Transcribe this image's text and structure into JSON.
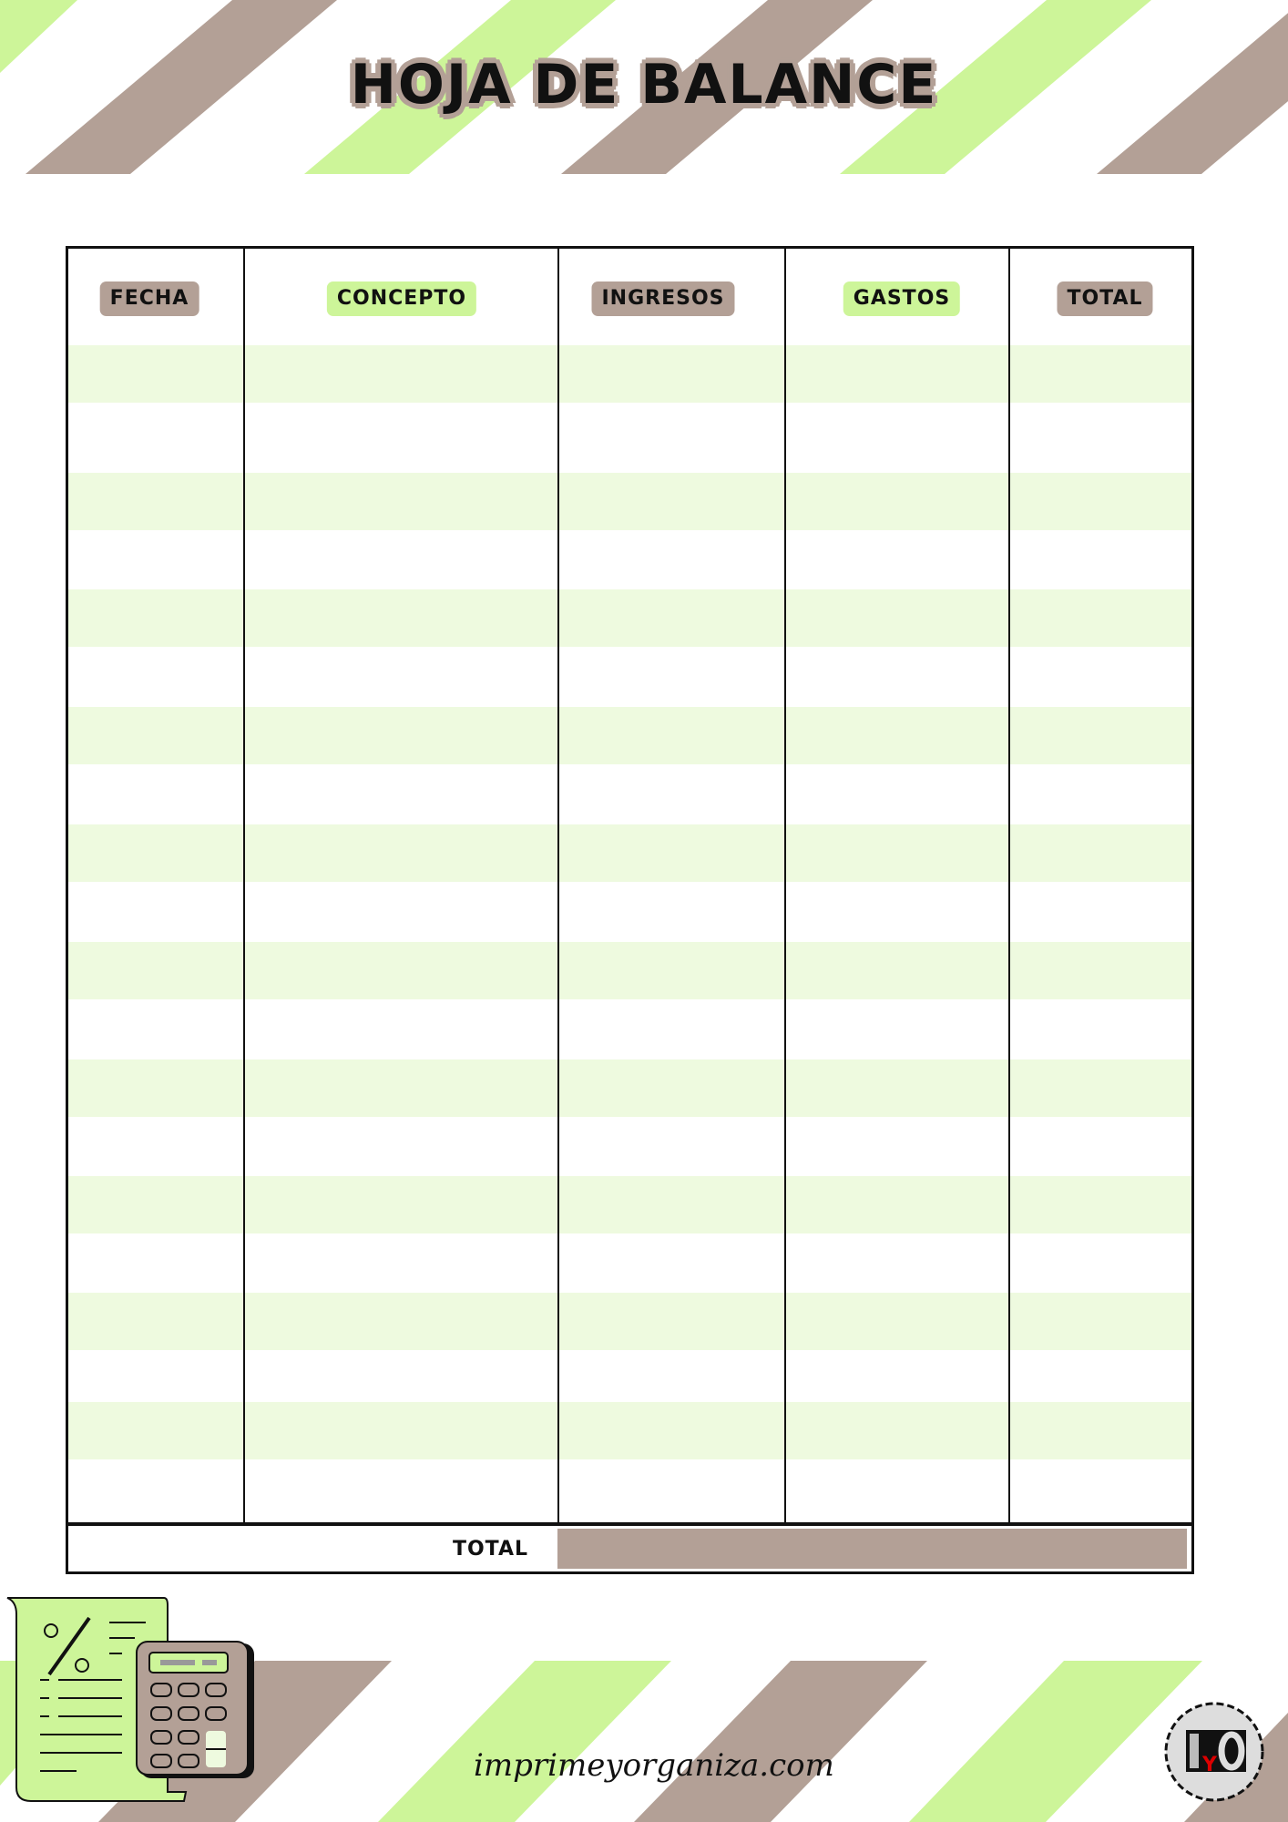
{
  "title": "HOJA DE BALANCE",
  "colors": {
    "brown": "#b3a096",
    "green": "#cdf599",
    "row_stripe": "#eefadf",
    "ink": "#111111"
  },
  "table": {
    "columns": [
      {
        "label": "FECHA",
        "pill": "brown"
      },
      {
        "label": "CONCEPTO",
        "pill": "green"
      },
      {
        "label": "INGRESOS",
        "pill": "brown"
      },
      {
        "label": "GASTOS",
        "pill": "green"
      },
      {
        "label": "TOTAL",
        "pill": "brown"
      }
    ],
    "rows": 20,
    "total_label": "TOTAL"
  },
  "footer": {
    "website": "imprimeyorganiza.com",
    "logo_text": "IyO",
    "illustration": "receipt-calculator-icon"
  }
}
